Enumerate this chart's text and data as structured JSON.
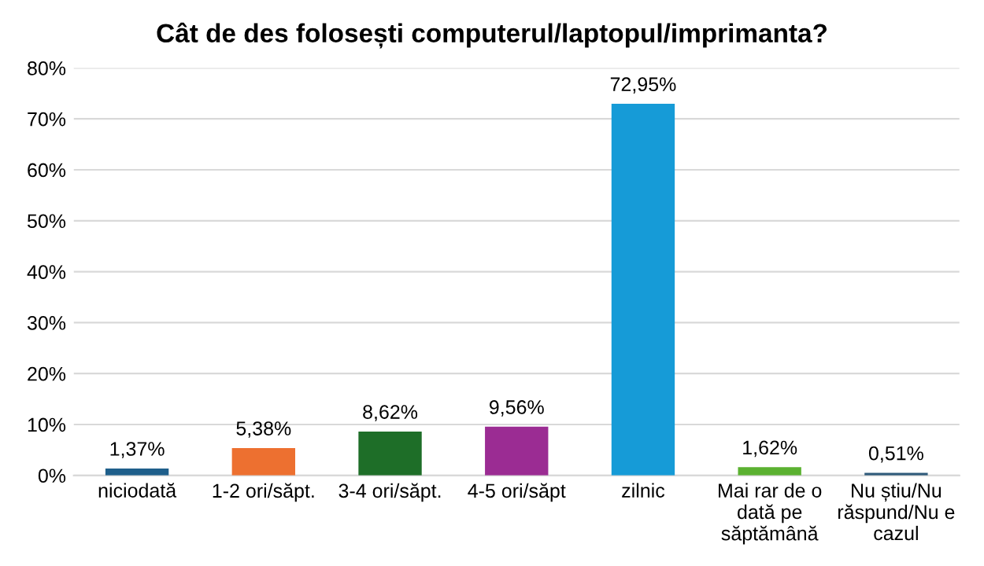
{
  "chart_data": {
    "type": "bar",
    "title": "Cât de des folosești computerul/laptopul/imprimanta?",
    "categories": [
      "niciodată",
      "1-2 ori/săpt.",
      "3-4 ori/săpt.",
      "4-5 ori/săpt",
      "zilnic",
      "Mai rar de o dată pe săptămână",
      "Nu știu/Nu răspund/Nu e cazul"
    ],
    "values": [
      1.37,
      5.38,
      8.62,
      9.56,
      72.95,
      1.62,
      0.51
    ],
    "colors": [
      "#1f5f8b",
      "#ed7030",
      "#1e6e28",
      "#9b2c93",
      "#169bd7",
      "#5bb131",
      "#2e5a7a"
    ],
    "value_labels": [
      "1,37%",
      "5,38%",
      "8,62%",
      "9,56%",
      "72,95%",
      "1,62%",
      "0,51%"
    ],
    "ylim": [
      0,
      80
    ],
    "yticks": [
      {
        "value": 0,
        "label": "0%"
      },
      {
        "value": 10,
        "label": "10%"
      },
      {
        "value": 20,
        "label": "20%"
      },
      {
        "value": 30,
        "label": "30%"
      },
      {
        "value": 40,
        "label": "40%"
      },
      {
        "value": 50,
        "label": "50%"
      },
      {
        "value": 60,
        "label": "60%"
      },
      {
        "value": 70,
        "label": "70%"
      },
      {
        "value": 80,
        "label": "80%"
      }
    ],
    "grid": "y",
    "legend": false
  }
}
